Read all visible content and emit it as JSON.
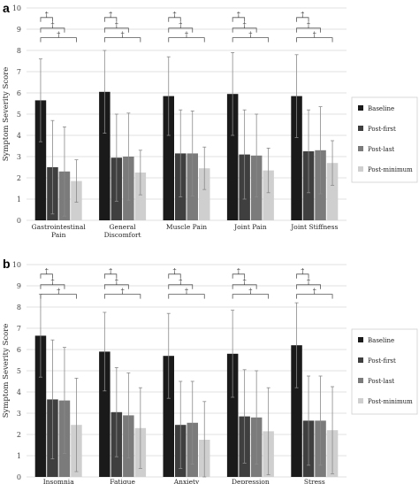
{
  "colors": {
    "baseline": "#1a1a1a",
    "post_first": "#3f3f3f",
    "post_last": "#7b7b7b",
    "post_minimum": "#cfcfcf",
    "grid": "#e2e2e2",
    "axis_text": "#444444"
  },
  "chart_data": [
    {
      "type": "bar",
      "panel_label": "a",
      "ylabel": "Symptom Severity Score",
      "ylim": [
        0,
        10
      ],
      "yticks": [
        0,
        1,
        2,
        3,
        4,
        5,
        6,
        7,
        8,
        9,
        10
      ],
      "grid": true,
      "legend_position": "right",
      "categories": [
        [
          "Gastrointestinal",
          "Pain"
        ],
        [
          "General",
          "Discomfort"
        ],
        [
          "Muscle Pain"
        ],
        [
          "Joint Pain"
        ],
        [
          "Joint Stiffness"
        ]
      ],
      "series": [
        {
          "name": "Baseline",
          "values": [
            5.65,
            6.05,
            5.85,
            5.95,
            5.85
          ],
          "errors": [
            1.95,
            1.95,
            1.85,
            1.95,
            1.95
          ]
        },
        {
          "name": "Post-first",
          "values": [
            2.5,
            2.95,
            3.15,
            3.1,
            3.25
          ],
          "errors": [
            2.2,
            2.05,
            2.05,
            2.1,
            1.95
          ]
        },
        {
          "name": "Post-last",
          "values": [
            2.3,
            3.0,
            3.15,
            3.05,
            3.3
          ],
          "errors": [
            2.1,
            2.05,
            2.0,
            1.95,
            2.05
          ]
        },
        {
          "name": "Post-minimum",
          "values": [
            1.85,
            2.25,
            2.45,
            2.35,
            2.7
          ],
          "errors": [
            1.0,
            1.05,
            1.0,
            1.05,
            1.05
          ]
        }
      ],
      "significance_marker": "†",
      "significance_brackets": [
        [
          0,
          1
        ],
        [
          0,
          2
        ],
        [
          0,
          3
        ]
      ]
    },
    {
      "type": "bar",
      "panel_label": "b",
      "ylabel": "Symptom Severity Score",
      "ylim": [
        0,
        10
      ],
      "yticks": [
        0,
        1,
        2,
        3,
        4,
        5,
        6,
        7,
        8,
        9,
        10
      ],
      "grid": true,
      "legend_position": "right",
      "categories": [
        [
          "Insomnia"
        ],
        [
          "Fatigue"
        ],
        [
          "Anxiety"
        ],
        [
          "Depression"
        ],
        [
          "Stress"
        ]
      ],
      "series": [
        {
          "name": "Baseline",
          "values": [
            6.65,
            5.9,
            5.7,
            5.8,
            6.2
          ],
          "errors": [
            1.95,
            1.85,
            2.0,
            2.05,
            2.0
          ]
        },
        {
          "name": "Post-first",
          "values": [
            3.65,
            3.05,
            2.45,
            2.85,
            2.65
          ],
          "errors": [
            2.8,
            2.1,
            2.05,
            2.2,
            2.1
          ]
        },
        {
          "name": "Post-last",
          "values": [
            3.6,
            2.9,
            2.55,
            2.8,
            2.65
          ],
          "errors": [
            2.5,
            2.0,
            1.95,
            2.2,
            2.1
          ]
        },
        {
          "name": "Post-minimum",
          "values": [
            2.45,
            2.3,
            1.75,
            2.15,
            2.2
          ],
          "errors": [
            2.2,
            1.9,
            1.8,
            2.05,
            2.05
          ]
        }
      ],
      "significance_marker": "†",
      "significance_brackets": [
        [
          0,
          1
        ],
        [
          0,
          2
        ],
        [
          0,
          3
        ]
      ]
    }
  ]
}
